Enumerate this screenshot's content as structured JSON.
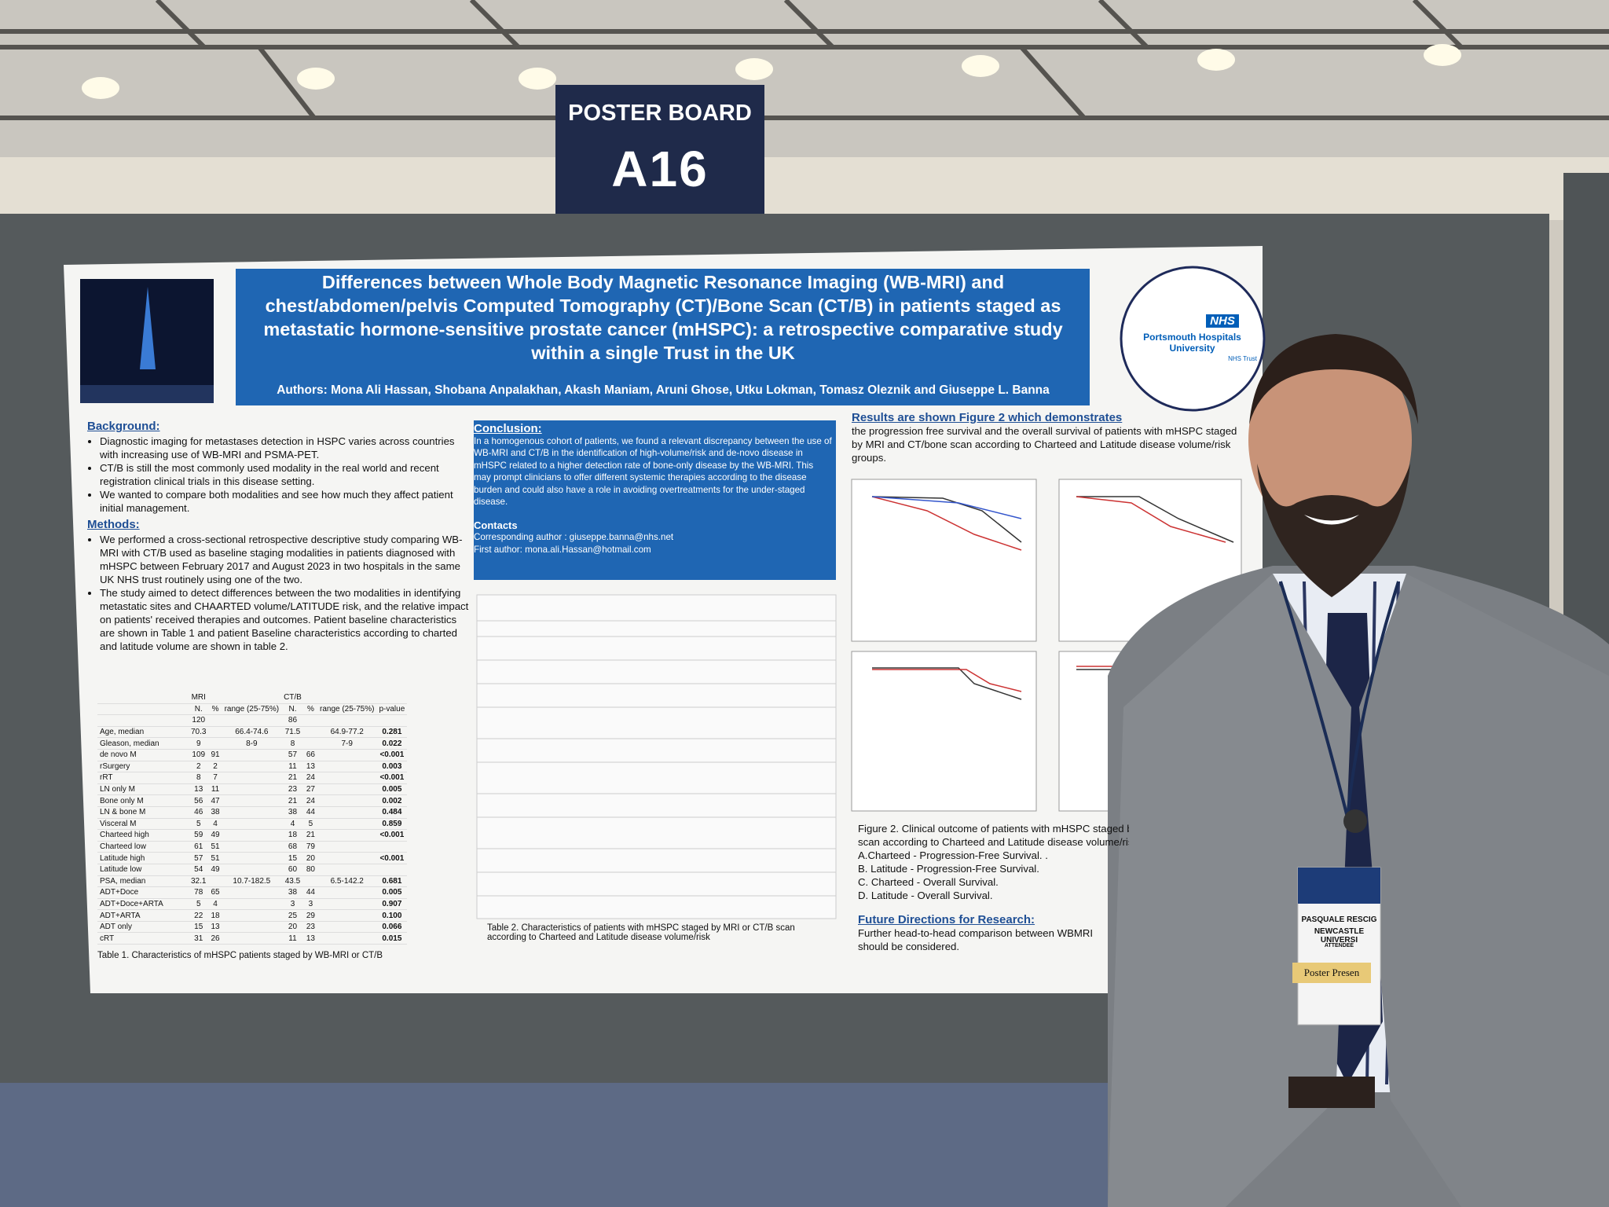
{
  "sign": {
    "label": "POSTER BOARD",
    "code": "A16"
  },
  "poster": {
    "title": [
      "Differences between Whole Body Magnetic Resonance Imaging (WB-MRI) and",
      "chest/abdomen/pelvis Computed Tomography (CT)/Bone Scan (CT/B) in patients staged as",
      "metastatic hormone-sensitive prostate cancer (mHSPC): a retrospective comparative study",
      "within a single Trust in the UK"
    ],
    "authors": "Authors: Mona Ali Hassan, Shobana Anpalakhan, Akash Maniam, Aruni Ghose, Utku Lokman, Tomasz Oleznik and Giuseppe L. Banna",
    "logo": {
      "badge": "NHS",
      "org": [
        "Portsmouth Hospitals",
        "University"
      ],
      "trust": "NHS Trust"
    },
    "background": {
      "heading": "Background:",
      "bullets": [
        "Diagnostic imaging for metastases detection in HSPC varies across countries with increasing use of WB-MRI and PSMA-PET.",
        "CT/B is still the most commonly used modality in the real world and recent registration clinical trials in this disease setting.",
        "We wanted to compare both modalities and see how much they affect patient initial management."
      ]
    },
    "methods": {
      "heading": "Methods:",
      "bullets": [
        "We performed a cross-sectional retrospective descriptive study comparing WB-MRI with CT/B used as baseline staging modalities in patients diagnosed with mHSPC between February 2017 and August 2023 in two hospitals in the same UK NHS trust routinely using one of the two.",
        "The study aimed to detect differences between the two modalities in identifying metastatic sites and CHAARTED volume/LATITUDE risk, and the relative impact on patients' received therapies and outcomes. Patient baseline characteristics are shown in Table 1 and patient Baseline characteristics according to charted and latitude volume are shown in table 2."
      ]
    },
    "table1": {
      "header": [
        null,
        "MRI",
        null,
        null,
        "CT/B",
        null,
        null,
        null
      ],
      "subheader": [
        null,
        "N.",
        "%",
        "range (25-75%)",
        "N.",
        "%",
        "range (25-75%)",
        "p-value"
      ],
      "rows": [
        [
          null,
          "120",
          null,
          null,
          "86",
          null,
          null,
          null
        ],
        [
          "Age, median",
          "70.3",
          null,
          "66.4-74.6",
          "71.5",
          null,
          "64.9-77.2",
          "0.281"
        ],
        [
          "Gleason, median",
          "9",
          null,
          "8-9",
          "8",
          null,
          "7-9",
          "0.022"
        ],
        [
          "de novo M",
          "109",
          "91",
          null,
          "57",
          "66",
          null,
          "<0.001"
        ],
        [
          "rSurgery",
          "2",
          "2",
          null,
          "11",
          "13",
          null,
          "0.003"
        ],
        [
          "rRT",
          "8",
          "7",
          null,
          "21",
          "24",
          null,
          "<0.001"
        ],
        [
          "LN only M",
          "13",
          "11",
          null,
          "23",
          "27",
          null,
          "0.005"
        ],
        [
          "Bone only M",
          "56",
          "47",
          null,
          "21",
          "24",
          null,
          "0.002"
        ],
        [
          "LN & bone M",
          "46",
          "38",
          null,
          "38",
          "44",
          null,
          "0.484"
        ],
        [
          "Visceral M",
          "5",
          "4",
          null,
          "4",
          "5",
          null,
          "0.859"
        ],
        [
          "Charteed high",
          "59",
          "49",
          null,
          "18",
          "21",
          null,
          "<0.001"
        ],
        [
          "Charteed low",
          "61",
          "51",
          null,
          "68",
          "79",
          null,
          null
        ],
        [
          "Latitude high",
          "57",
          "51",
          null,
          "15",
          "20",
          null,
          "<0.001"
        ],
        [
          "Latitude low",
          "54",
          "49",
          null,
          "60",
          "80",
          null,
          null
        ],
        [
          "PSA, median",
          "32.1",
          null,
          "10.7-182.5",
          "43.5",
          null,
          "6.5-142.2",
          "0.681"
        ],
        [
          "ADT+Doce",
          "78",
          "65",
          null,
          "38",
          "44",
          null,
          "0.005"
        ],
        [
          "ADT+Doce+ARTA",
          "5",
          "4",
          null,
          "3",
          "3",
          null,
          "0.907"
        ],
        [
          "ADT+ARTA",
          "22",
          "18",
          null,
          "25",
          "29",
          null,
          "0.100"
        ],
        [
          "ADT only",
          "15",
          "13",
          null,
          "20",
          "23",
          null,
          "0.066"
        ],
        [
          "cRT",
          "31",
          "26",
          null,
          "11",
          "13",
          null,
          "0.015"
        ]
      ],
      "caption": "Table 1. Characteristics of mHSPC patients staged by WB-MRI or CT/B"
    },
    "conclusion": {
      "heading": "Conclusion:",
      "text": "In a homogenous cohort of patients, we found a relevant discrepancy between the use of WB-MRI and CT/B in the identification of high-volume/risk and de-novo disease in mHSPC related to a higher detection rate of bone-only disease by the WB-MRI. This may prompt clinicians to offer different systemic therapies according to the disease burden and could also have a role in avoiding overtreatments for the under-staged disease.",
      "contacts_heading": "Contacts",
      "contacts": [
        "Corresponding author : giuseppe.banna@nhs.net",
        "First author: mona.ali.Hassan@hotmail.com"
      ]
    },
    "table2_caption": "Table 2. Characteristics of patients with mHSPC staged by MRI or CT/B scan according to Charteed and Latitude disease volume/risk",
    "results": {
      "heading": "Results are shown Figure 2 which demonstrates",
      "text": "the progression free survival and the overall survival of patients with mHSPC staged by MRI and CT/bone scan according to Charteed and Latitude disease volume/risk groups."
    },
    "figure_caption": [
      "Figure 2. Clinical outcome of patients with mHSPC staged by",
      "scan according to Charteed and Latitude disease volume/risk",
      "A.Charteed - Progression-Free Survival. .",
      "B. Latitude - Progression-Free Survival.",
      "C. Charteed - Overall Survival.",
      "D. Latitude - Overall Survival."
    ],
    "future": {
      "heading": "Future Directions for Research:",
      "text": [
        "Further head-to-head comparison between WBMRI",
        "should be considered."
      ]
    }
  },
  "badge": {
    "name": "PASQUALE RESCIG",
    "org": "NEWCASTLE UNIVERSI",
    "role": "ATTENDEE",
    "ribbon": "Poster Presen"
  }
}
